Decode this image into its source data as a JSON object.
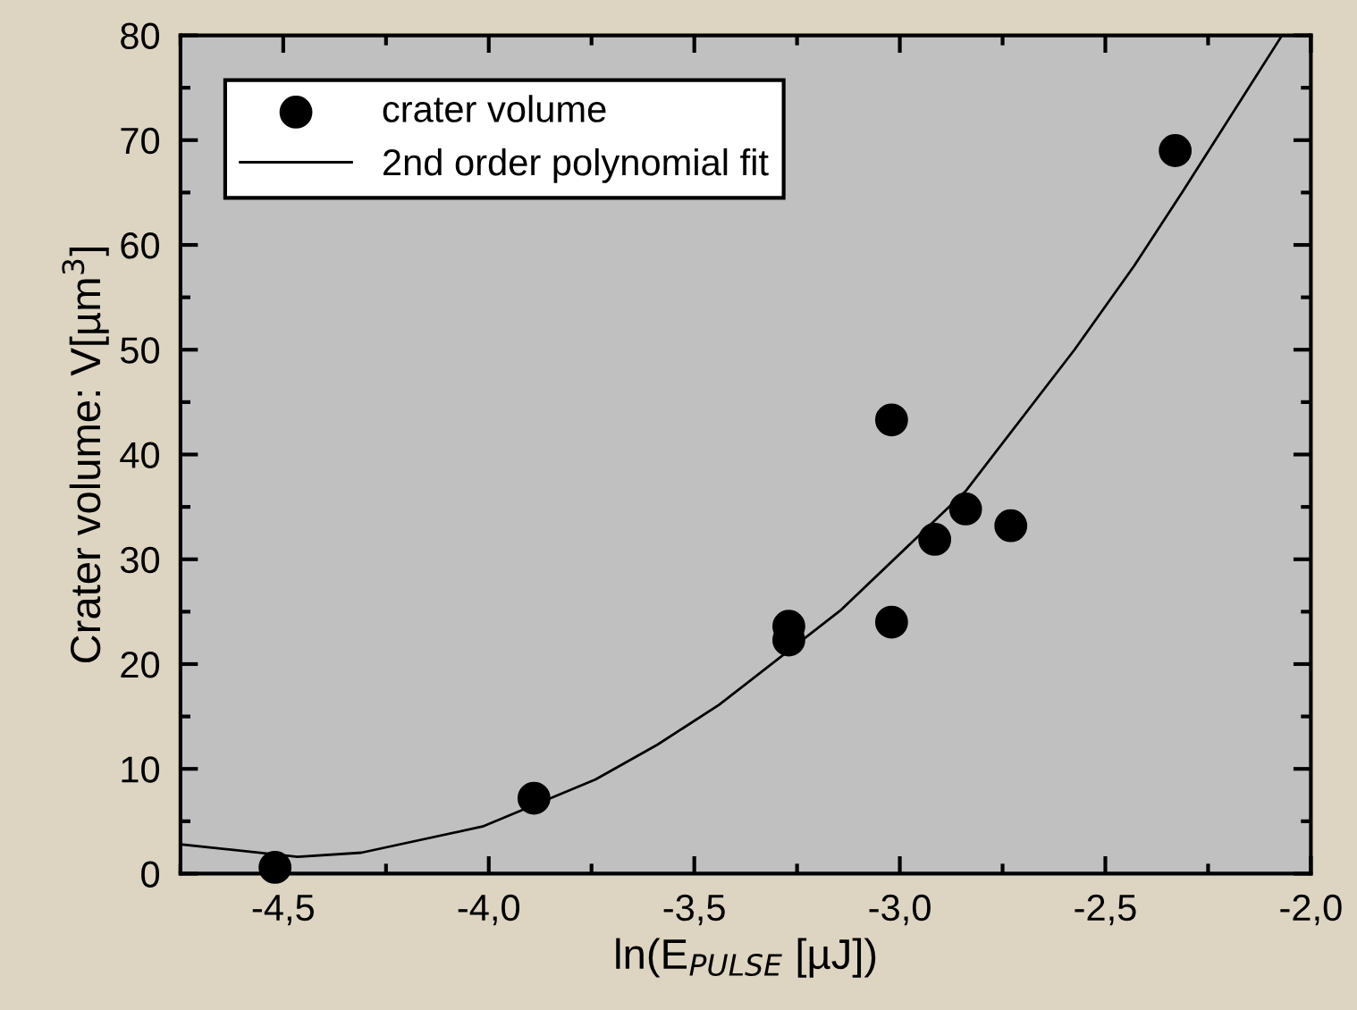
{
  "chart_data": {
    "type": "scatter",
    "xlabel": "ln(E$_{PULSE}$ [µJ])",
    "ylabel": "Crater volume: V[µm$^{3}$]",
    "xlim": [
      -4.75,
      -2.0
    ],
    "ylim": [
      0,
      80
    ],
    "xticks": [
      {
        "value": -4.5,
        "label": "-4,5"
      },
      {
        "value": -4.0,
        "label": "-4,0"
      },
      {
        "value": -3.5,
        "label": "-3,5"
      },
      {
        "value": -3.0,
        "label": "-3,0"
      },
      {
        "value": -2.5,
        "label": "-2,5"
      },
      {
        "value": -2.0,
        "label": "-2,0"
      }
    ],
    "yticks": [
      0,
      10,
      20,
      30,
      40,
      50,
      60,
      70,
      80
    ],
    "legend": "top left",
    "grid": false,
    "series": [
      {
        "name": "crater volume",
        "marker": "circle",
        "color": "#000000",
        "x": [
          -4.52,
          -3.89,
          -3.27,
          -3.27,
          -3.02,
          -3.02,
          -2.915,
          -2.84,
          -2.73,
          -2.33
        ],
        "values": [
          0.6,
          7.2,
          23.6,
          22.3,
          43.3,
          24.0,
          31.9,
          34.8,
          33.2,
          69.0
        ]
      },
      {
        "name": "2nd order polynomial fit",
        "type": "line",
        "marker": "none",
        "line_style": "solid",
        "color": "#000000",
        "x": [
          -4.75,
          -4.465,
          -4.31,
          -4.015,
          -3.74,
          -3.59,
          -3.44,
          -3.145,
          -2.84,
          -2.575,
          -2.43,
          -2.31,
          -2.07
        ],
        "values": [
          2.8,
          1.6,
          2.0,
          4.5,
          9.0,
          12.3,
          16.1,
          25.1,
          36.5,
          50.0,
          58.0,
          65.2,
          80.0
        ]
      }
    ]
  }
}
